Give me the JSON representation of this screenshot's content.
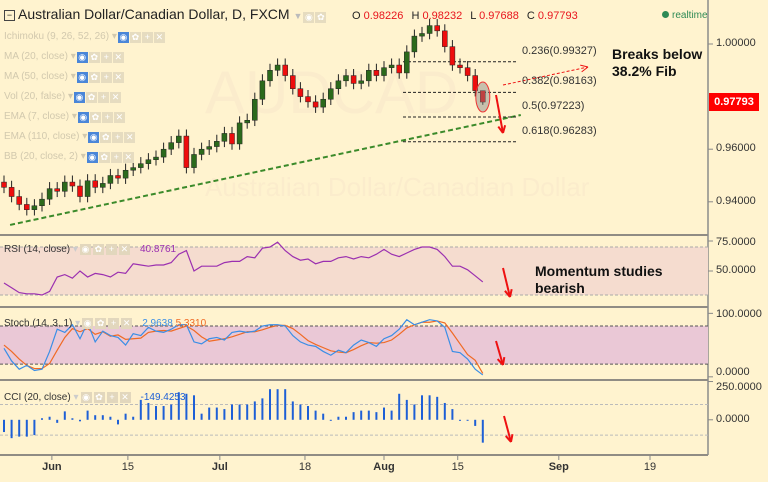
{
  "header": {
    "title": "Australian Dollar/Canadian Dollar, D, FXCM",
    "collapse_icon": "minus-box-icon",
    "ohlc": {
      "o_label": "O",
      "o": "0.98226",
      "h_label": "H",
      "h": "0.98232",
      "l_label": "L",
      "l": "0.97688",
      "c_label": "C",
      "c": "0.97793"
    },
    "status": "realtime"
  },
  "watermark": {
    "symbol": "AUDCAD",
    "name": "Australian Dollar/Canadian Dollar"
  },
  "indicators": [
    "Ichimoku (9, 26, 52, 26)",
    "MA (20, close)",
    "MA (50, close)",
    "Vol (20, false)",
    "EMA (7, close)",
    "EMA (110, close)",
    "BB (20, close, 2)"
  ],
  "colors": {
    "bull": "#2b6a1c",
    "bear": "#ee0d0d",
    "trendline": "#3b8a2a",
    "rsi": "#9b30b0",
    "stoch_k": "#3a8ee6",
    "stoch_d": "#f06a24",
    "cci": "#1e5fd6",
    "annotation": "#ee1111",
    "background": "#fff3cf"
  },
  "annotations": {
    "fib_note": [
      "Breaks below",
      "38.2% Fib"
    ],
    "momentum_note": [
      "Momentum studies",
      "bearish"
    ]
  },
  "current_price": "0.97793",
  "chart_data": [
    {
      "type": "candlestick",
      "title": "Australian Dollar/Canadian Dollar, D, FXCM",
      "close": [
        0.9455,
        0.942,
        0.939,
        0.937,
        0.9385,
        0.941,
        0.945,
        0.944,
        0.9475,
        0.946,
        0.942,
        0.948,
        0.9455,
        0.947,
        0.95,
        0.949,
        0.952,
        0.953,
        0.9545,
        0.956,
        0.957,
        0.96,
        0.9625,
        0.965,
        0.953,
        0.958,
        0.96,
        0.961,
        0.963,
        0.966,
        0.962,
        0.97,
        0.971,
        0.979,
        0.986,
        0.99,
        0.992,
        0.988,
        0.983,
        0.98,
        0.978,
        0.976,
        0.979,
        0.983,
        0.986,
        0.988,
        0.985,
        0.986,
        0.99,
        0.988,
        0.991,
        0.992,
        0.989,
        0.997,
        1.003,
        1.004,
        1.007,
        1.005,
        0.999,
        0.992,
        0.991,
        0.988,
        0.98226,
        0.97793
      ],
      "last_candle": {
        "open": 0.98226,
        "high": 0.98232,
        "low": 0.97688,
        "close": 0.97793
      },
      "ylim": [
        0.925,
        1.016
      ],
      "yticks": [
        "1.00000",
        "0.96000",
        "0.94000"
      ],
      "ytick_values": [
        1.0,
        0.96,
        0.94
      ],
      "xticks": [
        {
          "label": "Jun",
          "index": 6.3,
          "bold": true
        },
        {
          "label": "15",
          "index": 16.3
        },
        {
          "label": "Jul",
          "index": 28.4,
          "bold": true
        },
        {
          "label": "18",
          "index": 39.6
        },
        {
          "label": "Aug",
          "index": 50,
          "bold": true
        },
        {
          "label": "15",
          "index": 59.7
        },
        {
          "label": "Sep",
          "index": 73,
          "bold": true
        },
        {
          "label": "19",
          "index": 85
        }
      ],
      "fib_levels": [
        {
          "label": "0.236(0.99327)",
          "value": 0.99327
        },
        {
          "label": "0.382(0.98163)",
          "value": 0.98163
        },
        {
          "label": "0.5(0.97223)",
          "value": 0.97223
        },
        {
          "label": "0.618(0.96283)",
          "value": 0.96283
        }
      ],
      "trendline": {
        "from": {
          "index": 0.8,
          "value": 0.9312
        },
        "to": {
          "index": 68,
          "value": 0.973
        }
      }
    },
    {
      "type": "line",
      "name": "RSI (14, close)",
      "last_value": "40.8761",
      "ylim": [
        20,
        80
      ],
      "yticks": [
        "75.0000",
        "50.0000"
      ],
      "ytick_values": [
        75,
        50
      ],
      "band": [
        30,
        70
      ],
      "values": [
        40,
        36,
        32,
        31,
        31,
        30,
        33,
        45,
        47,
        44,
        50,
        45,
        48,
        47,
        45,
        49,
        48,
        56,
        55,
        54,
        55,
        55,
        57,
        64,
        67,
        50,
        54,
        54,
        54,
        57,
        58,
        58,
        62,
        61,
        69,
        70,
        74,
        67,
        62,
        59,
        60,
        56,
        58,
        58,
        61,
        62,
        60,
        62,
        61,
        64,
        68,
        64,
        62,
        65,
        68,
        70,
        70,
        68,
        62,
        54,
        54,
        51,
        46,
        40.8761
      ]
    },
    {
      "type": "line",
      "name": "Stoch (14, 3, 1)",
      "last_k": "2.9638",
      "last_d": "5.3310",
      "ylim": [
        -5,
        110
      ],
      "yticks": [
        "100.0000",
        "0.0000"
      ],
      "ytick_values": [
        100,
        0
      ],
      "band": [
        20,
        80
      ],
      "k": [
        45,
        25,
        12,
        18,
        10,
        12,
        40,
        75,
        70,
        82,
        60,
        85,
        55,
        72,
        65,
        62,
        50,
        68,
        65,
        78,
        72,
        70,
        75,
        82,
        82,
        55,
        52,
        60,
        62,
        58,
        70,
        72,
        70,
        72,
        80,
        82,
        82,
        80,
        65,
        55,
        50,
        48,
        40,
        34,
        42,
        38,
        50,
        58,
        54,
        48,
        60,
        65,
        75,
        90,
        82,
        86,
        90,
        88,
        78,
        40,
        38,
        28,
        12,
        2.9638
      ],
      "d": [
        50,
        40,
        28,
        18,
        13,
        13,
        21,
        42,
        62,
        76,
        71,
        76,
        67,
        71,
        64,
        66,
        59,
        60,
        61,
        70,
        72,
        73,
        72,
        76,
        80,
        73,
        63,
        56,
        58,
        60,
        63,
        67,
        71,
        71,
        74,
        78,
        81,
        81,
        76,
        67,
        57,
        51,
        46,
        41,
        39,
        38,
        43,
        49,
        54,
        53,
        54,
        58,
        67,
        77,
        82,
        86,
        86,
        88,
        85,
        69,
        52,
        35,
        26,
        5.331
      ]
    },
    {
      "type": "bar",
      "name": "CCI (20, close)",
      "last_value": "-149.4253",
      "ylim": [
        -230,
        260
      ],
      "yticks": [
        "250.0000",
        "0.0000"
      ],
      "ytick_values": [
        250,
        0
      ],
      "band": [
        -100,
        100
      ],
      "values": [
        -80,
        -120,
        -110,
        -110,
        -100,
        10,
        20,
        -20,
        55,
        10,
        -10,
        60,
        30,
        30,
        20,
        -30,
        40,
        20,
        130,
        110,
        90,
        90,
        100,
        180,
        170,
        160,
        40,
        80,
        80,
        70,
        100,
        100,
        100,
        120,
        140,
        200,
        200,
        200,
        120,
        100,
        90,
        60,
        40,
        -5,
        20,
        20,
        50,
        60,
        60,
        50,
        80,
        60,
        170,
        130,
        100,
        160,
        160,
        150,
        110,
        70,
        0,
        -5,
        -40,
        -149.4253
      ]
    }
  ]
}
